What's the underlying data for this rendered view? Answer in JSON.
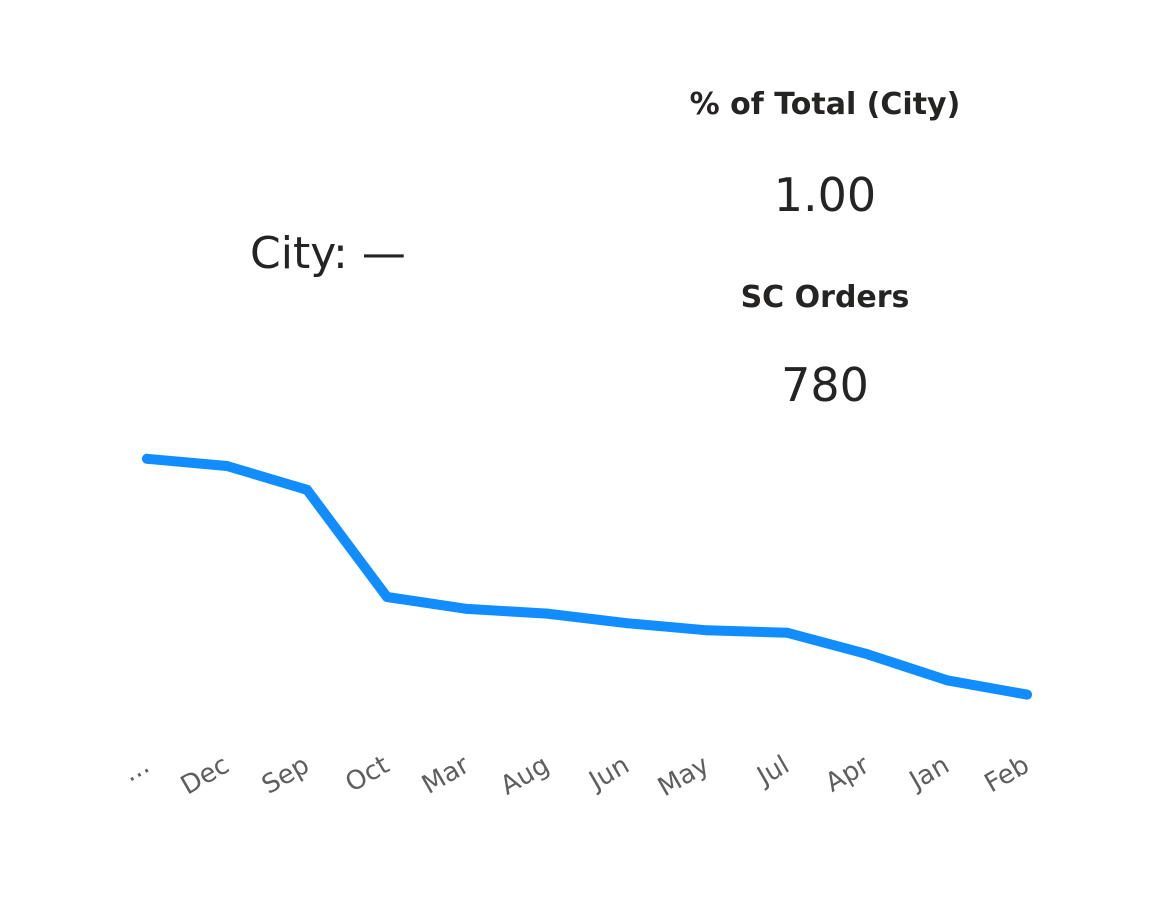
{
  "city": {
    "label": "City: —"
  },
  "kpis": {
    "pct_total": {
      "title": "% of Total (City)",
      "value": "1.00"
    },
    "orders": {
      "title": "SC Orders",
      "value": "780"
    }
  },
  "chart_data": {
    "type": "line",
    "title": "",
    "xlabel": "",
    "ylabel": "",
    "categories": [
      "...",
      "Dec",
      "Sep",
      "Oct",
      "Mar",
      "Aug",
      "Jun",
      "May",
      "Jul",
      "Apr",
      "Jan",
      "Feb"
    ],
    "series": [
      {
        "values": [
          100,
          97,
          87,
          42,
          37,
          35,
          31,
          28,
          27,
          18,
          7,
          1
        ],
        "color": "#118DFF"
      }
    ],
    "ylim": [
      0,
      110
    ],
    "grid": false,
    "legend": "none",
    "axis_visible": {
      "x": true,
      "y": false
    }
  }
}
